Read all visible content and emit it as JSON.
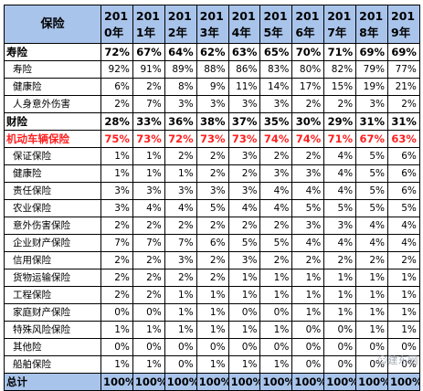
{
  "table": {
    "label_header": "保险",
    "years": [
      "2010年",
      "2011年",
      "2012年",
      "2013年",
      "2014年",
      "2015年",
      "2016年",
      "2017年",
      "2018年",
      "2019年"
    ],
    "rows": [
      {
        "label": "寿险",
        "kind": "group",
        "values": [
          "72%",
          "67%",
          "64%",
          "62%",
          "63%",
          "65%",
          "70%",
          "71%",
          "69%",
          "69%"
        ]
      },
      {
        "label": "寿险",
        "kind": "sub",
        "values": [
          "92%",
          "91%",
          "89%",
          "88%",
          "86%",
          "83%",
          "80%",
          "82%",
          "79%",
          "77%"
        ]
      },
      {
        "label": "健康险",
        "kind": "sub",
        "values": [
          "6%",
          "2%",
          "8%",
          "9%",
          "11%",
          "14%",
          "17%",
          "15%",
          "19%",
          "21%"
        ]
      },
      {
        "label": "人身意外伤害",
        "kind": "sub",
        "values": [
          "2%",
          "7%",
          "3%",
          "3%",
          "3%",
          "3%",
          "2%",
          "2%",
          "3%",
          "2%"
        ]
      },
      {
        "label": "财险",
        "kind": "group",
        "values": [
          "28%",
          "33%",
          "36%",
          "38%",
          "37%",
          "35%",
          "30%",
          "29%",
          "31%",
          "31%"
        ]
      },
      {
        "label": "机动车辆保险",
        "kind": "highlight",
        "values": [
          "75%",
          "73%",
          "72%",
          "73%",
          "73%",
          "74%",
          "74%",
          "71%",
          "67%",
          "63%"
        ]
      },
      {
        "label": "保证保险",
        "kind": "sub",
        "values": [
          "1%",
          "1%",
          "2%",
          "2%",
          "3%",
          "2%",
          "2%",
          "4%",
          "5%",
          "6%"
        ]
      },
      {
        "label": "健康险",
        "kind": "sub",
        "values": [
          "1%",
          "1%",
          "1%",
          "2%",
          "2%",
          "3%",
          "3%",
          "4%",
          "5%",
          "6%"
        ]
      },
      {
        "label": "责任保险",
        "kind": "sub",
        "values": [
          "3%",
          "3%",
          "3%",
          "3%",
          "3%",
          "4%",
          "4%",
          "4%",
          "5%",
          "6%"
        ]
      },
      {
        "label": "农业保险",
        "kind": "sub",
        "values": [
          "3%",
          "4%",
          "4%",
          "5%",
          "4%",
          "4%",
          "5%",
          "5%",
          "5%",
          "5%"
        ]
      },
      {
        "label": "意外伤害保险",
        "kind": "sub",
        "values": [
          "2%",
          "2%",
          "2%",
          "2%",
          "2%",
          "2%",
          "3%",
          "3%",
          "4%",
          "4%"
        ]
      },
      {
        "label": "企业财产保险",
        "kind": "sub",
        "values": [
          "7%",
          "7%",
          "7%",
          "6%",
          "5%",
          "5%",
          "4%",
          "4%",
          "4%",
          "4%"
        ]
      },
      {
        "label": "信用保险",
        "kind": "sub",
        "values": [
          "2%",
          "2%",
          "3%",
          "2%",
          "3%",
          "2%",
          "2%",
          "2%",
          "2%",
          "2%"
        ]
      },
      {
        "label": "货物运输保险",
        "kind": "sub",
        "values": [
          "2%",
          "2%",
          "2%",
          "2%",
          "1%",
          "1%",
          "1%",
          "1%",
          "1%",
          "1%"
        ]
      },
      {
        "label": "工程保险",
        "kind": "sub",
        "values": [
          "2%",
          "2%",
          "1%",
          "1%",
          "1%",
          "1%",
          "1%",
          "1%",
          "1%",
          "1%"
        ]
      },
      {
        "label": "家庭财产保险",
        "kind": "sub",
        "values": [
          "0%",
          "0%",
          "1%",
          "1%",
          "0%",
          "0%",
          "1%",
          "1%",
          "1%",
          "1%"
        ]
      },
      {
        "label": "特殊风险保险",
        "kind": "sub",
        "values": [
          "1%",
          "1%",
          "1%",
          "1%",
          "1%",
          "1%",
          "0%",
          "0%",
          "1%",
          "1%"
        ]
      },
      {
        "label": "其他险",
        "kind": "sub",
        "values": [
          "0%",
          "0%",
          "0%",
          "0%",
          "0%",
          "0%",
          "0%",
          "0%",
          "0%",
          "0%"
        ]
      },
      {
        "label": "船舶保险",
        "kind": "sub",
        "values": [
          "1%",
          "1%",
          "0%",
          "1%",
          "1%",
          "1%",
          "0%",
          "0%",
          "0%",
          "0%"
        ]
      },
      {
        "label": "总计",
        "kind": "total",
        "values": [
          "100%",
          "100%",
          "100%",
          "100%",
          "100%",
          "100%",
          "100%",
          "100%",
          "100%",
          "100%"
        ]
      }
    ]
  },
  "watermark": {
    "text": "☺建东网"
  },
  "colors": {
    "header_fill": "#a9c4eb",
    "highlight_text": "#ff2020",
    "grid": "#000000"
  }
}
